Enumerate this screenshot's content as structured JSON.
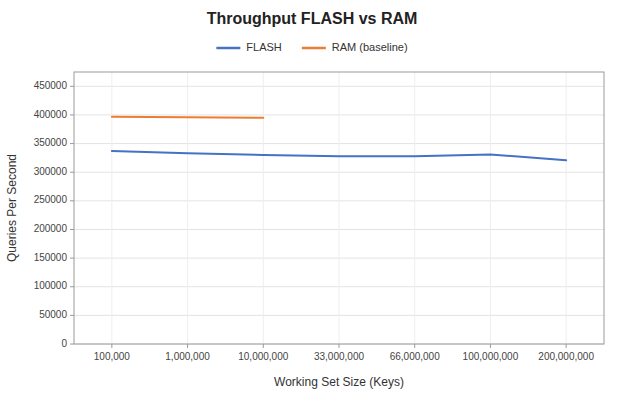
{
  "chart_data": {
    "type": "line",
    "title": "Throughput FLASH vs RAM",
    "xlabel": "Working Set Size (Keys)",
    "ylabel": "Queries Per Second",
    "categories": [
      "100,000",
      "1,000,000",
      "10,000,000",
      "33,000,000",
      "66,000,000",
      "100,000,000",
      "200,000,000"
    ],
    "series": [
      {
        "name": "FLASH",
        "color": "#4472c4",
        "values": [
          337000,
          333000,
          330000,
          328000,
          328000,
          331000,
          321000
        ]
      },
      {
        "name": "RAM (baseline)",
        "color": "#ed7d31",
        "values": [
          397000,
          396000,
          395000,
          null,
          null,
          null,
          null
        ]
      }
    ],
    "ylim": [
      0,
      475000
    ],
    "yticks": [
      0,
      50000,
      100000,
      150000,
      200000,
      250000,
      300000,
      350000,
      400000,
      450000
    ],
    "grid": true,
    "legend": "top"
  }
}
